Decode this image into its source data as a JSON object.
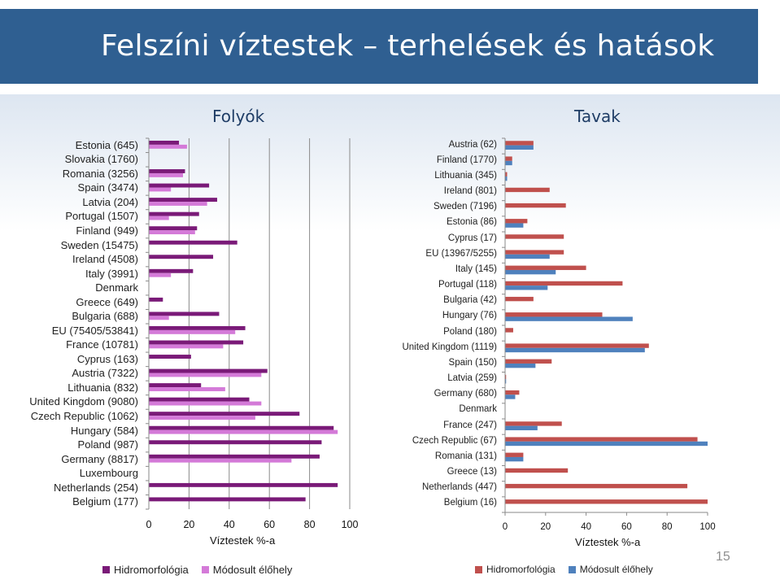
{
  "slide": {
    "title": "Felszíni víztestek – terhelések és hatások",
    "page_number": "15"
  },
  "chart_data": [
    {
      "type": "bar",
      "orientation": "horizontal",
      "title": "Folyók",
      "xlabel": "Víztestek %-a",
      "xlim": [
        0,
        100
      ],
      "xticks": [
        "0",
        "20",
        "40",
        "60",
        "80",
        "100"
      ],
      "grid": true,
      "legend_position": "bottom",
      "colors": [
        "#7a1a78",
        "#d47ad8"
      ],
      "categories": [
        "Estonia (645)",
        "Slovakia (1760)",
        "Romania (3256)",
        "Spain (3474)",
        "Latvia (204)",
        "Portugal (1507)",
        "Finland (949)",
        "Sweden (15475)",
        "Ireland (4508)",
        "Italy (3991)",
        "Denmark",
        "Greece (649)",
        "Bulgaria (688)",
        "EU (75405/53841)",
        "France (10781)",
        "Cyprus (163)",
        "Austria (7322)",
        "Lithuania (832)",
        "United Kingdom (9080)",
        "Czech Republic (1062)",
        "Hungary (584)",
        "Poland (987)",
        "Germany (8817)",
        "Luxembourg",
        "Netherlands (254)",
        "Belgium (177)"
      ],
      "series": [
        {
          "name": "Hidromorfológia",
          "values": [
            15,
            0,
            18,
            30,
            34,
            25,
            24,
            44,
            32,
            22,
            0,
            7,
            35,
            48,
            47,
            21,
            59,
            26,
            50,
            75,
            92,
            86,
            85,
            0,
            94,
            78
          ]
        },
        {
          "name": "Módosult élőhely",
          "values": [
            19,
            0,
            17,
            11,
            29,
            10,
            23,
            0,
            0,
            11,
            0,
            0,
            10,
            43,
            37,
            0,
            56,
            38,
            56,
            53,
            94,
            0,
            71,
            0,
            0,
            0
          ]
        }
      ]
    },
    {
      "type": "bar",
      "orientation": "horizontal",
      "title": "Tavak",
      "xlabel": "Víztestek %-a",
      "xlim": [
        0,
        100
      ],
      "xticks": [
        "0",
        "20",
        "40",
        "60",
        "80",
        "100"
      ],
      "grid": false,
      "legend_position": "bottom",
      "colors": [
        "#c0504d",
        "#4f81bd"
      ],
      "categories": [
        "Austria (62)",
        "Finland (1770)",
        "Lithuania (345)",
        "Ireland (801)",
        "Sweden (7196)",
        "Estonia (86)",
        "Cyprus (17)",
        "EU (13967/5255)",
        "Italy (145)",
        "Portugal (118)",
        "Bulgaria (42)",
        "Hungary (76)",
        "Poland (180)",
        "United Kingdom (1119)",
        "Spain (150)",
        "Latvia (259)",
        "Germany (680)",
        "Denmark",
        "France (247)",
        "Czech Republic (67)",
        "Romania (131)",
        "Greece (13)",
        "Netherlands (447)",
        "Belgium (16)"
      ],
      "series": [
        {
          "name": "Hidromorfológia",
          "values": [
            14,
            3.5,
            1,
            22,
            30,
            11,
            29,
            29,
            40,
            58,
            14,
            48,
            4,
            71,
            23,
            0.5,
            7,
            0,
            28,
            95,
            9,
            31,
            90,
            100
          ]
        },
        {
          "name": "Módosult élőhely",
          "values": [
            14,
            3.5,
            1,
            0,
            0,
            9,
            0,
            22,
            25,
            21,
            0,
            63,
            0,
            69,
            15,
            0.5,
            5,
            0,
            16,
            100,
            9,
            0,
            0,
            0
          ]
        }
      ]
    }
  ]
}
